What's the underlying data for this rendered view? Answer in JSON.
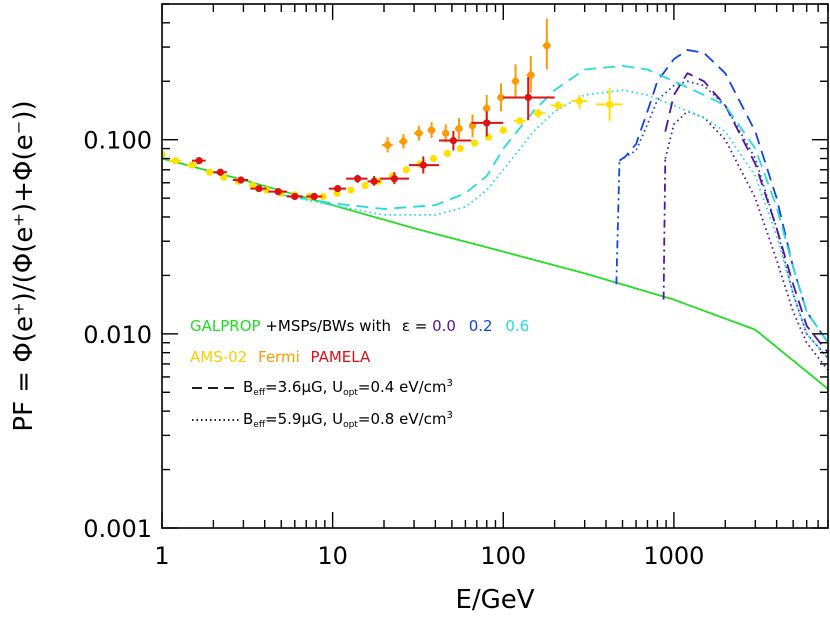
{
  "chart_data": {
    "type": "line",
    "xscale": "log",
    "yscale": "log",
    "xlim": [
      1,
      8000
    ],
    "ylim": [
      0.001,
      0.5
    ],
    "xlabel": "E/GeV",
    "ylabel": "PF = Φ(e⁺)/(Φ(e⁺)+Φ(e⁻))",
    "x_ticks": [
      {
        "value": 1,
        "label": "1"
      },
      {
        "value": 10,
        "label": "10"
      },
      {
        "value": 100,
        "label": "100"
      },
      {
        "value": 1000,
        "label": "1000"
      }
    ],
    "y_ticks": [
      {
        "value": 0.001,
        "label": "0.001"
      },
      {
        "value": 0.01,
        "label": "0.010"
      },
      {
        "value": 0.1,
        "label": "0.100"
      }
    ],
    "colors": {
      "galprop": "#22dd22",
      "eps0": "#5511aa",
      "eps02": "#1144ee",
      "eps06": "#22dddd",
      "ams": "#ffe000",
      "fermi": "#ff9900",
      "pamela": "#dd1111"
    },
    "legend": {
      "row1": {
        "galprop": "GALPROP",
        "rest": "+MSPs/BWs with",
        "eps_symbol": "ε",
        "eq": "=",
        "eps0": "0.0",
        "eps02": "0.2",
        "eps06": "0.6"
      },
      "row2": {
        "ams": "AMS-02",
        "fermi": "Fermi",
        "pamela": "PAMELA"
      },
      "row3": {
        "B": "B",
        "B_sub": "eff",
        "B_val": "=3.6μG, U",
        "U_sub": "opt",
        "U_val": "=0.4 eV/cm",
        "U_sup": "3"
      },
      "row4": {
        "B": "B",
        "B_sub": "eff",
        "B_val": "=5.9μG, U",
        "U_sub": "opt",
        "U_val": "=0.8 eV/cm",
        "U_sup": "3"
      }
    },
    "series": [
      {
        "name": "GALPROP",
        "color_key": "galprop",
        "dash": "solid",
        "points": [
          [
            1,
            0.08
          ],
          [
            3,
            0.062
          ],
          [
            10,
            0.046
          ],
          [
            30,
            0.035
          ],
          [
            100,
            0.0265
          ],
          [
            300,
            0.0205
          ],
          [
            1000,
            0.015
          ],
          [
            3000,
            0.0105
          ],
          [
            8000,
            0.0052
          ]
        ]
      },
      {
        "name": "eps=0.2 B=3.6",
        "color_key": "eps02",
        "dash": "dashed",
        "points": [
          [
            480,
            0.078
          ],
          [
            520,
            0.082
          ],
          [
            600,
            0.095
          ],
          [
            700,
            0.14
          ],
          [
            800,
            0.2
          ],
          [
            1000,
            0.26
          ],
          [
            1200,
            0.29
          ],
          [
            1500,
            0.28
          ],
          [
            2000,
            0.22
          ],
          [
            3000,
            0.11
          ],
          [
            4000,
            0.05
          ],
          [
            5000,
            0.022
          ],
          [
            6000,
            0.013
          ],
          [
            8000,
            0.009
          ]
        ]
      },
      {
        "name": "eps=0.2 B=5.9",
        "color_key": "eps02",
        "dash": "dotted",
        "points": [
          [
            480,
            0.078
          ],
          [
            600,
            0.088
          ],
          [
            700,
            0.12
          ],
          [
            800,
            0.16
          ],
          [
            1000,
            0.19
          ],
          [
            1200,
            0.2
          ],
          [
            1500,
            0.19
          ],
          [
            2000,
            0.15
          ],
          [
            3000,
            0.08
          ],
          [
            4000,
            0.035
          ],
          [
            5000,
            0.016
          ],
          [
            6000,
            0.01
          ],
          [
            8000,
            0.0075
          ]
        ]
      },
      {
        "name": "eps=0.2 cutoff",
        "color_key": "eps02",
        "dash": "dashdot",
        "points": [
          [
            460,
            0.018
          ],
          [
            480,
            0.078
          ]
        ]
      },
      {
        "name": "eps=0.0 B=3.6",
        "color_key": "eps0",
        "dash": "dashed",
        "points": [
          [
            890,
            0.11
          ],
          [
            1000,
            0.17
          ],
          [
            1200,
            0.22
          ],
          [
            1500,
            0.2
          ],
          [
            2000,
            0.15
          ],
          [
            3000,
            0.075
          ],
          [
            4000,
            0.035
          ],
          [
            5000,
            0.018
          ],
          [
            6000,
            0.011
          ],
          [
            8000,
            0.008
          ]
        ]
      },
      {
        "name": "eps=0.0 B=5.9",
        "color_key": "eps0",
        "dash": "dotted",
        "points": [
          [
            890,
            0.08
          ],
          [
            1000,
            0.12
          ],
          [
            1200,
            0.14
          ],
          [
            1500,
            0.13
          ],
          [
            2000,
            0.1
          ],
          [
            3000,
            0.05
          ],
          [
            4000,
            0.024
          ],
          [
            5000,
            0.013
          ],
          [
            6000,
            0.009
          ],
          [
            8000,
            0.0065
          ]
        ]
      },
      {
        "name": "eps=0.0 cutoff",
        "color_key": "eps0",
        "dash": "dashdot",
        "points": [
          [
            870,
            0.015
          ],
          [
            890,
            0.08
          ]
        ]
      },
      {
        "name": "eps=0.6 B=3.6",
        "color_key": "eps06",
        "dash": "dashed",
        "points": [
          [
            5,
            0.052
          ],
          [
            10,
            0.047
          ],
          [
            20,
            0.044
          ],
          [
            40,
            0.046
          ],
          [
            60,
            0.053
          ],
          [
            80,
            0.065
          ],
          [
            100,
            0.09
          ],
          [
            150,
            0.14
          ],
          [
            200,
            0.18
          ],
          [
            300,
            0.23
          ],
          [
            500,
            0.24
          ],
          [
            700,
            0.23
          ],
          [
            1000,
            0.2
          ],
          [
            1500,
            0.17
          ],
          [
            2000,
            0.15
          ],
          [
            3000,
            0.09
          ],
          [
            4000,
            0.045
          ],
          [
            5000,
            0.022
          ],
          [
            6000,
            0.013
          ],
          [
            8000,
            0.009
          ]
        ]
      },
      {
        "name": "eps=0.6 B=5.9",
        "color_key": "eps06",
        "dash": "dotted",
        "points": [
          [
            5,
            0.052
          ],
          [
            10,
            0.046
          ],
          [
            20,
            0.041
          ],
          [
            40,
            0.041
          ],
          [
            60,
            0.045
          ],
          [
            80,
            0.055
          ],
          [
            100,
            0.07
          ],
          [
            150,
            0.11
          ],
          [
            200,
            0.14
          ],
          [
            300,
            0.17
          ],
          [
            500,
            0.18
          ],
          [
            700,
            0.17
          ],
          [
            1000,
            0.15
          ],
          [
            1500,
            0.13
          ],
          [
            2000,
            0.11
          ],
          [
            3000,
            0.065
          ],
          [
            4000,
            0.032
          ],
          [
            5000,
            0.016
          ],
          [
            6000,
            0.01
          ],
          [
            8000,
            0.0075
          ]
        ]
      }
    ],
    "data_sets": [
      {
        "name": "AMS-02",
        "color_key": "ams",
        "points": [
          {
            "x": 1.0,
            "y": 0.084,
            "xl": 0.95,
            "xh": 1.05,
            "yl": 0.082,
            "yh": 0.086
          },
          {
            "x": 1.2,
            "y": 0.078,
            "xl": 1.1,
            "xh": 1.3,
            "yl": 0.076,
            "yh": 0.08
          },
          {
            "x": 1.5,
            "y": 0.074,
            "xl": 1.4,
            "xh": 1.6,
            "yl": 0.072,
            "yh": 0.076
          },
          {
            "x": 1.9,
            "y": 0.068,
            "xl": 1.8,
            "xh": 2.0,
            "yl": 0.066,
            "yh": 0.07
          },
          {
            "x": 2.3,
            "y": 0.064,
            "xl": 2.2,
            "xh": 2.4,
            "yl": 0.062,
            "yh": 0.066
          },
          {
            "x": 2.8,
            "y": 0.061,
            "xl": 2.7,
            "xh": 2.9,
            "yl": 0.059,
            "yh": 0.063
          },
          {
            "x": 3.4,
            "y": 0.058,
            "xl": 3.3,
            "xh": 3.5,
            "yl": 0.056,
            "yh": 0.06
          },
          {
            "x": 4.1,
            "y": 0.055,
            "xl": 4.0,
            "xh": 4.2,
            "yl": 0.053,
            "yh": 0.057
          },
          {
            "x": 5.0,
            "y": 0.053,
            "xl": 4.8,
            "xh": 5.2,
            "yl": 0.051,
            "yh": 0.055
          },
          {
            "x": 6.0,
            "y": 0.052,
            "xl": 5.8,
            "xh": 6.2,
            "yl": 0.05,
            "yh": 0.054
          },
          {
            "x": 7.3,
            "y": 0.051,
            "xl": 7.0,
            "xh": 7.6,
            "yl": 0.049,
            "yh": 0.053
          },
          {
            "x": 8.8,
            "y": 0.051,
            "xl": 8.5,
            "xh": 9.1,
            "yl": 0.049,
            "yh": 0.053
          },
          {
            "x": 10.6,
            "y": 0.053,
            "xl": 10.2,
            "xh": 11,
            "yl": 0.051,
            "yh": 0.055
          },
          {
            "x": 12.8,
            "y": 0.055,
            "xl": 12.3,
            "xh": 13.3,
            "yl": 0.053,
            "yh": 0.057
          },
          {
            "x": 15.5,
            "y": 0.058,
            "xl": 15,
            "xh": 16,
            "yl": 0.056,
            "yh": 0.06
          },
          {
            "x": 18.6,
            "y": 0.061,
            "xl": 18,
            "xh": 19.2,
            "yl": 0.059,
            "yh": 0.063
          },
          {
            "x": 22.4,
            "y": 0.065,
            "xl": 21.7,
            "xh": 23.1,
            "yl": 0.063,
            "yh": 0.067
          },
          {
            "x": 27,
            "y": 0.07,
            "xl": 26,
            "xh": 28,
            "yl": 0.068,
            "yh": 0.072
          },
          {
            "x": 32.5,
            "y": 0.075,
            "xl": 31.5,
            "xh": 33.5,
            "yl": 0.073,
            "yh": 0.077
          },
          {
            "x": 39,
            "y": 0.08,
            "xl": 38,
            "xh": 40,
            "yl": 0.078,
            "yh": 0.082
          },
          {
            "x": 47,
            "y": 0.085,
            "xl": 46,
            "xh": 48,
            "yl": 0.083,
            "yh": 0.087
          },
          {
            "x": 56,
            "y": 0.09,
            "xl": 55,
            "xh": 57,
            "yl": 0.088,
            "yh": 0.092
          },
          {
            "x": 68,
            "y": 0.096,
            "xl": 66,
            "xh": 70,
            "yl": 0.094,
            "yh": 0.098
          },
          {
            "x": 82,
            "y": 0.103,
            "xl": 80,
            "xh": 84,
            "yl": 0.1,
            "yh": 0.106
          },
          {
            "x": 100,
            "y": 0.112,
            "xl": 95,
            "xh": 105,
            "yl": 0.108,
            "yh": 0.116
          },
          {
            "x": 125,
            "y": 0.125,
            "xl": 115,
            "xh": 135,
            "yl": 0.12,
            "yh": 0.13
          },
          {
            "x": 160,
            "y": 0.137,
            "xl": 150,
            "xh": 175,
            "yl": 0.13,
            "yh": 0.144
          },
          {
            "x": 210,
            "y": 0.15,
            "xl": 190,
            "xh": 230,
            "yl": 0.142,
            "yh": 0.158
          },
          {
            "x": 280,
            "y": 0.158,
            "xl": 250,
            "xh": 310,
            "yl": 0.145,
            "yh": 0.17
          },
          {
            "x": 420,
            "y": 0.152,
            "xl": 350,
            "xh": 500,
            "yl": 0.125,
            "yh": 0.185
          }
        ]
      },
      {
        "name": "Fermi",
        "color_key": "fermi",
        "points": [
          {
            "x": 21,
            "y": 0.094,
            "xl": 19.5,
            "xh": 22.5,
            "yl": 0.086,
            "yh": 0.103
          },
          {
            "x": 26,
            "y": 0.098,
            "xl": 24.5,
            "xh": 27.5,
            "yl": 0.09,
            "yh": 0.107
          },
          {
            "x": 32,
            "y": 0.108,
            "xl": 30,
            "xh": 34,
            "yl": 0.099,
            "yh": 0.118
          },
          {
            "x": 38,
            "y": 0.112,
            "xl": 36,
            "xh": 40,
            "yl": 0.102,
            "yh": 0.123
          },
          {
            "x": 46,
            "y": 0.108,
            "xl": 44,
            "xh": 48,
            "yl": 0.097,
            "yh": 0.12
          },
          {
            "x": 55,
            "y": 0.114,
            "xl": 52,
            "xh": 58,
            "yl": 0.101,
            "yh": 0.129
          },
          {
            "x": 66,
            "y": 0.118,
            "xl": 63,
            "xh": 69,
            "yl": 0.103,
            "yh": 0.135
          },
          {
            "x": 80,
            "y": 0.145,
            "xl": 76,
            "xh": 84,
            "yl": 0.125,
            "yh": 0.17
          },
          {
            "x": 97,
            "y": 0.165,
            "xl": 92,
            "xh": 102,
            "yl": 0.14,
            "yh": 0.195
          },
          {
            "x": 118,
            "y": 0.2,
            "xl": 112,
            "xh": 124,
            "yl": 0.165,
            "yh": 0.245
          },
          {
            "x": 145,
            "y": 0.215,
            "xl": 137,
            "xh": 153,
            "yl": 0.175,
            "yh": 0.27
          },
          {
            "x": 180,
            "y": 0.305,
            "xl": 170,
            "xh": 190,
            "yl": 0.23,
            "yh": 0.42
          }
        ]
      },
      {
        "name": "PAMELA",
        "color_key": "pamela",
        "points": [
          {
            "x": 1.65,
            "y": 0.078,
            "xl": 1.5,
            "xh": 1.8,
            "yl": 0.076,
            "yh": 0.08
          },
          {
            "x": 2.2,
            "y": 0.068,
            "xl": 2.0,
            "xh": 2.4,
            "yl": 0.066,
            "yh": 0.07
          },
          {
            "x": 2.9,
            "y": 0.062,
            "xl": 2.6,
            "xh": 3.2,
            "yl": 0.06,
            "yh": 0.064
          },
          {
            "x": 3.7,
            "y": 0.056,
            "xl": 3.3,
            "xh": 4.1,
            "yl": 0.055,
            "yh": 0.058
          },
          {
            "x": 4.8,
            "y": 0.054,
            "xl": 4.2,
            "xh": 5.4,
            "yl": 0.053,
            "yh": 0.056
          },
          {
            "x": 6.0,
            "y": 0.051,
            "xl": 5.4,
            "xh": 6.7,
            "yl": 0.05,
            "yh": 0.053
          },
          {
            "x": 7.8,
            "y": 0.051,
            "xl": 7,
            "xh": 8.7,
            "yl": 0.05,
            "yh": 0.053
          },
          {
            "x": 10.7,
            "y": 0.056,
            "xl": 9.5,
            "xh": 12,
            "yl": 0.054,
            "yh": 0.058
          },
          {
            "x": 14,
            "y": 0.063,
            "xl": 12,
            "xh": 16,
            "yl": 0.06,
            "yh": 0.066
          },
          {
            "x": 17.5,
            "y": 0.061,
            "xl": 16,
            "xh": 19,
            "yl": 0.058,
            "yh": 0.065
          },
          {
            "x": 23,
            "y": 0.063,
            "xl": 19,
            "xh": 28,
            "yl": 0.059,
            "yh": 0.068
          },
          {
            "x": 34,
            "y": 0.074,
            "xl": 28,
            "xh": 42,
            "yl": 0.067,
            "yh": 0.082
          },
          {
            "x": 51,
            "y": 0.099,
            "xl": 42,
            "xh": 65,
            "yl": 0.088,
            "yh": 0.111
          },
          {
            "x": 80,
            "y": 0.122,
            "xl": 65,
            "xh": 100,
            "yl": 0.104,
            "yh": 0.14
          },
          {
            "x": 140,
            "y": 0.165,
            "xl": 100,
            "xh": 200,
            "yl": 0.126,
            "yh": 0.21
          }
        ]
      }
    ]
  }
}
